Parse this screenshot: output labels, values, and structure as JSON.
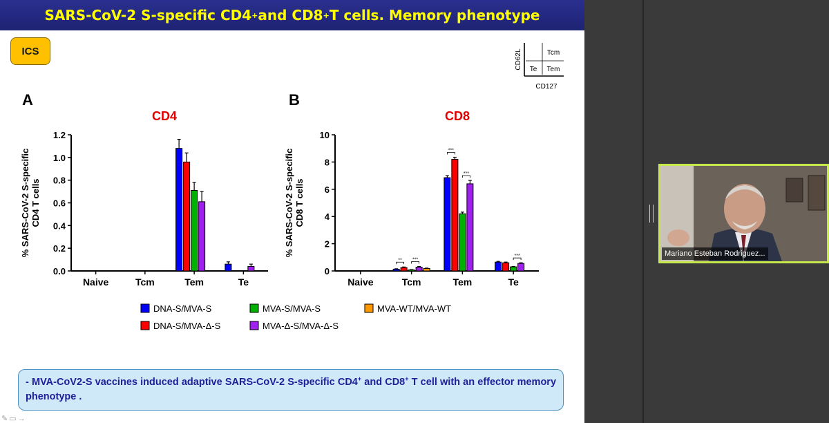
{
  "slide": {
    "title_pre": "SARS-CoV-2 S-specific CD4",
    "title_sup1": "+",
    "title_mid": " and CD8",
    "title_sup2": "+",
    "title_post": " T cells. Memory phenotype",
    "badge": "ICS",
    "gate_key": {
      "y_axis": "CD62L",
      "x_axis": "CD127",
      "tcm": "Tcm",
      "te": "Te",
      "tem": "Tem"
    },
    "footer_pre": "- MVA-CoV2-S vaccines induced adaptive SARS-CoV-2 S-specific CD4",
    "footer_sup1": "+",
    "footer_mid": " and CD8",
    "footer_sup2": "+",
    "footer_post": " T cell with an effector memory phenotype ."
  },
  "legend": [
    {
      "label": "DNA-S/MVA-S",
      "color": "#0000ff"
    },
    {
      "label": "MVA-S/MVA-S",
      "color": "#00b000"
    },
    {
      "label": "MVA-WT/MVA-WT",
      "color": "#ff9900"
    },
    {
      "label": "DNA-S/MVA-Δ-S",
      "color": "#ff0000"
    },
    {
      "label": "MVA-Δ-S/MVA-Δ-S",
      "color": "#a020f0"
    }
  ],
  "chart_data": [
    {
      "panel": "A",
      "type": "bar",
      "title": "CD4",
      "ylabel_line1": "% SARS-CoV-2 S-specific",
      "ylabel_line2": "CD4 T cells",
      "categories": [
        "Naive",
        "Tcm",
        "Tem",
        "Te"
      ],
      "ylim": [
        0,
        1.2
      ],
      "yticks": [
        "0.0",
        "0.2",
        "0.4",
        "0.6",
        "0.8",
        "1.0",
        "1.2"
      ],
      "bar_order": [
        "DNA-S/MVA-S",
        "DNA-S/MVA-Δ-S",
        "MVA-S/MVA-S",
        "MVA-Δ-S/MVA-Δ-S",
        "MVA-WT/MVA-WT"
      ],
      "series": [
        {
          "name": "DNA-S/MVA-S",
          "values": [
            0,
            0,
            1.08,
            0.06
          ],
          "errors": [
            0,
            0,
            0.08,
            0.02
          ]
        },
        {
          "name": "DNA-S/MVA-Δ-S",
          "values": [
            0,
            0,
            0.96,
            0
          ],
          "errors": [
            0,
            0,
            0.08,
            0
          ]
        },
        {
          "name": "MVA-S/MVA-S",
          "values": [
            0,
            0,
            0.71,
            0
          ],
          "errors": [
            0,
            0,
            0.07,
            0
          ]
        },
        {
          "name": "MVA-Δ-S/MVA-Δ-S",
          "values": [
            0,
            0,
            0.61,
            0.04
          ],
          "errors": [
            0,
            0,
            0.09,
            0.02
          ]
        },
        {
          "name": "MVA-WT/MVA-WT",
          "values": [
            0,
            0,
            0,
            0
          ],
          "errors": [
            0,
            0,
            0,
            0
          ]
        }
      ]
    },
    {
      "panel": "B",
      "type": "bar",
      "title": "CD8",
      "ylabel_line1": "% SARS-CoV-2 S-specific",
      "ylabel_line2": "CD8 T cells",
      "categories": [
        "Naive",
        "Tcm",
        "Tem",
        "Te"
      ],
      "ylim": [
        0,
        10
      ],
      "yticks": [
        "0",
        "2",
        "4",
        "6",
        "8",
        "10"
      ],
      "bar_order": [
        "DNA-S/MVA-S",
        "DNA-S/MVA-Δ-S",
        "MVA-S/MVA-S",
        "MVA-Δ-S/MVA-Δ-S",
        "MVA-WT/MVA-WT"
      ],
      "series": [
        {
          "name": "DNA-S/MVA-S",
          "values": [
            0.02,
            0.13,
            6.85,
            0.65
          ],
          "errors": [
            0,
            0.03,
            0.15,
            0.05
          ]
        },
        {
          "name": "DNA-S/MVA-Δ-S",
          "values": [
            0,
            0.25,
            8.2,
            0.6
          ],
          "errors": [
            0,
            0.04,
            0.15,
            0.05
          ]
        },
        {
          "name": "MVA-S/MVA-S",
          "values": [
            0,
            0.08,
            4.2,
            0.3
          ],
          "errors": [
            0,
            0.02,
            0.12,
            0.03
          ]
        },
        {
          "name": "MVA-Δ-S/MVA-Δ-S",
          "values": [
            0,
            0.28,
            6.4,
            0.55
          ],
          "errors": [
            0,
            0.05,
            0.25,
            0.05
          ]
        },
        {
          "name": "MVA-WT/MVA-WT",
          "values": [
            0,
            0.18,
            0,
            0
          ],
          "errors": [
            0,
            0.03,
            0,
            0
          ]
        }
      ],
      "significance": [
        {
          "category": "Tcm",
          "from": 0,
          "to": 1,
          "label": "**"
        },
        {
          "category": "Tcm",
          "from": 2,
          "to": 3,
          "label": "***"
        },
        {
          "category": "Tem",
          "from": 0,
          "to": 1,
          "label": "***"
        },
        {
          "category": "Tem",
          "from": 2,
          "to": 3,
          "label": "***"
        },
        {
          "category": "Te",
          "from": 2,
          "to": 3,
          "label": "***"
        }
      ]
    }
  ],
  "webcam": {
    "name": "Mariano Esteban Rodriguez..."
  }
}
